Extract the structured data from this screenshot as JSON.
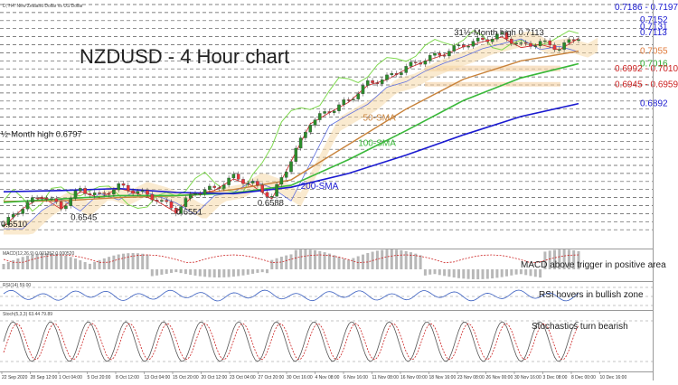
{
  "header": {
    "caption": "D, H4: New Zealand Dollar vs US Dollar",
    "title": "NZDUSD - 4 Hour chart"
  },
  "colors": {
    "bull_candle": "#e8343a",
    "bear_candle": "#2a8c2a",
    "sma50": "#c8823a",
    "sma100": "#3ab83a",
    "sma200": "#1a1ad0",
    "tenkan": "#d02020",
    "kijun": "#1a1ad0",
    "chikou": "#7fd94f",
    "cloud": "#f6d9a8",
    "level_blue": "#1a1ad0",
    "level_orange": "#e07a3a",
    "level_green": "#2aa82a",
    "level_red": "#cc2222",
    "rsi_line": "#3a5fc0",
    "stoch_main": "#555555",
    "stoch_signal": "#cc2222"
  },
  "chart_data": {
    "type": "line",
    "title": "NZDUSD - 4 Hour chart",
    "x_ticks": [
      "22 Sep 2020",
      "28 Sep 12:00",
      "1 Oct 04:00",
      "5 Oct 20:00",
      "8 Oct 12:00",
      "13 Oct 04:00",
      "15 Oct 20:00",
      "20 Oct 12:00",
      "23 Oct 04:00",
      "27 Oct 20:00",
      "30 Oct 16:00",
      "4 Nov 08:00",
      "6 Nov 16:00",
      "11 Nov 08:00",
      "16 Nov 00:00",
      "18 Nov 16:00",
      "23 Nov 08:00",
      "26 Nov 00:00",
      "30 Nov 16:00",
      "3 Dec 08:00",
      "8 Dec 00:00",
      "10 Dec 16:00"
    ],
    "ylim": [
      0.645,
      0.72
    ],
    "price_labels": [
      {
        "text": "0.7186 - 0.7197",
        "value": 0.7192,
        "color": "#1a1ad0"
      },
      {
        "text": "0.7152",
        "value": 0.7152,
        "color": "#1a1ad0"
      },
      {
        "text": "0.7131",
        "value": 0.7131,
        "color": "#1a1ad0"
      },
      {
        "text": "0.7113",
        "value": 0.7113,
        "color": "#1a1ad0"
      },
      {
        "text": "0.7055",
        "value": 0.7055,
        "color": "#e07a3a"
      },
      {
        "text": "0.7016",
        "value": 0.7016,
        "color": "#2aa82a"
      },
      {
        "text": "0.6992 - 0.7010",
        "value": 0.7001,
        "color": "#cc2222"
      },
      {
        "text": "0.6945 - 0.6959",
        "value": 0.6952,
        "color": "#cc2222"
      },
      {
        "text": "0.6892",
        "value": 0.6892,
        "color": "#1a1ad0"
      }
    ],
    "annotations": [
      {
        "text": "31½-Month high 0.7113",
        "x": 47,
        "y": 0.7113
      },
      {
        "text": "½-Month high 0.6797",
        "x": -2,
        "y": 0.6797
      },
      {
        "text": "0.6510",
        "x": -3,
        "y": 0.6518
      },
      {
        "text": "0.6545",
        "x": 7,
        "y": 0.6538
      },
      {
        "text": "0.6551",
        "x": 18,
        "y": 0.6556
      },
      {
        "text": "0.6588",
        "x": 26.5,
        "y": 0.6584
      },
      {
        "text": "50-SMA",
        "x": 37.5,
        "y": 0.6848
      },
      {
        "text": "100-SMA",
        "x": 37,
        "y": 0.6769
      },
      {
        "text": "200-SMA",
        "x": 31,
        "y": 0.6636
      }
    ],
    "close_series": {
      "x": [
        0,
        2,
        4,
        6,
        8,
        10,
        12,
        14,
        16,
        18,
        20,
        22,
        24,
        26,
        28,
        30,
        32,
        34,
        36,
        38,
        40,
        42,
        44,
        46,
        48,
        50,
        52,
        54,
        56,
        58,
        60
      ],
      "values": [
        0.6515,
        0.6572,
        0.6608,
        0.657,
        0.6625,
        0.6605,
        0.6635,
        0.6618,
        0.6595,
        0.656,
        0.6618,
        0.6628,
        0.6664,
        0.6642,
        0.6602,
        0.6718,
        0.6835,
        0.687,
        0.6902,
        0.6955,
        0.6972,
        0.7005,
        0.703,
        0.705,
        0.7075,
        0.709,
        0.7105,
        0.7072,
        0.7082,
        0.7065,
        0.7101
      ]
    },
    "sma50": {
      "x": [
        0,
        6,
        12,
        18,
        24,
        30,
        36,
        42,
        48,
        54,
        60
      ],
      "values": [
        0.6588,
        0.659,
        0.66,
        0.6605,
        0.6625,
        0.6655,
        0.6765,
        0.6875,
        0.6968,
        0.7025,
        0.7055
      ]
    },
    "sma100": {
      "x": [
        0,
        6,
        12,
        18,
        24,
        30,
        36,
        42,
        48,
        54,
        60
      ],
      "values": [
        0.6585,
        0.6596,
        0.6606,
        0.6606,
        0.6614,
        0.6638,
        0.6718,
        0.6808,
        0.6902,
        0.6972,
        0.7016
      ]
    },
    "sma200": {
      "x": [
        0,
        6,
        12,
        18,
        24,
        30,
        36,
        42,
        48,
        54,
        60
      ],
      "values": [
        0.6618,
        0.6622,
        0.6628,
        0.6616,
        0.6612,
        0.6632,
        0.6675,
        0.6732,
        0.6795,
        0.6852,
        0.6892
      ]
    },
    "macd": {
      "label": "MACD above trigger in positive area",
      "header": "MACD(12,26,9) 0.001352 0.000520"
    },
    "rsi": {
      "label": "RSI hovers in bullish zone",
      "header": "RSI(14) 59.00"
    },
    "stochastic": {
      "label": "Stochastics turn bearish",
      "header": "Stoch(5,3,3) 63.44 79.89"
    }
  }
}
